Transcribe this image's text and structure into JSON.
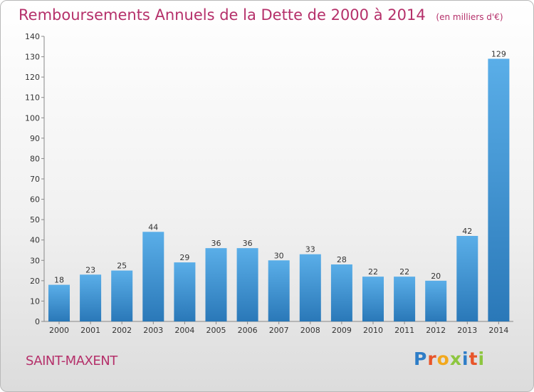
{
  "header": {
    "title": "Remboursements Annuels de la Dette de 2000 à 2014",
    "subtitle": "(en milliers d'€)"
  },
  "footer": {
    "place": "SAINT-MAXENT",
    "logo": "Proxiti"
  },
  "colors": {
    "bar_light": "#5aaee8",
    "bar_dark": "#2a78b8",
    "title": "#b5306a"
  },
  "chart_data": {
    "type": "bar",
    "title": "Remboursements Annuels de la Dette de 2000 à 2014",
    "subtitle": "(en milliers d'€)",
    "categories": [
      "2000",
      "2001",
      "2002",
      "2003",
      "2004",
      "2005",
      "2006",
      "2007",
      "2008",
      "2009",
      "2010",
      "2011",
      "2012",
      "2013",
      "2014"
    ],
    "values": [
      18,
      23,
      25,
      44,
      29,
      36,
      36,
      30,
      33,
      28,
      22,
      22,
      20,
      42,
      129
    ],
    "ylim": [
      0,
      140
    ],
    "yticks": [
      0,
      10,
      20,
      30,
      40,
      50,
      60,
      70,
      80,
      90,
      100,
      110,
      120,
      130,
      140
    ],
    "grid": false,
    "legend": "none"
  }
}
